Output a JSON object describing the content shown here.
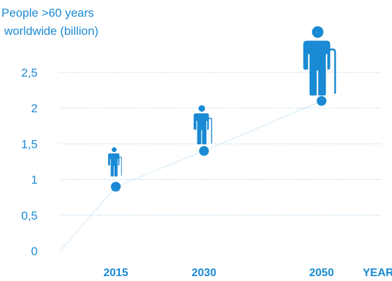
{
  "chart_data": {
    "type": "scatter",
    "ylabel": [
      "People >60 years",
      "worldwide (billion)"
    ],
    "xlabel": "YEAR",
    "x_categories": [
      "2015",
      "2030",
      "2050"
    ],
    "y_ticks": [
      "0",
      "0,5",
      "1",
      "1,5",
      "2",
      "2,5"
    ],
    "ylim": [
      0,
      2.9
    ],
    "series": [
      {
        "points": [
          {
            "x": 2015,
            "y": 0.9
          },
          {
            "x": 2030,
            "y": 1.4
          },
          {
            "x": 2050,
            "y": 2.1
          }
        ]
      }
    ],
    "trend_from_origin": true,
    "grid": true,
    "icon": "elderly-person-with-cane-icon",
    "colors": {
      "accent": "#1a8ad4",
      "grid": "#8cc6ec"
    }
  }
}
